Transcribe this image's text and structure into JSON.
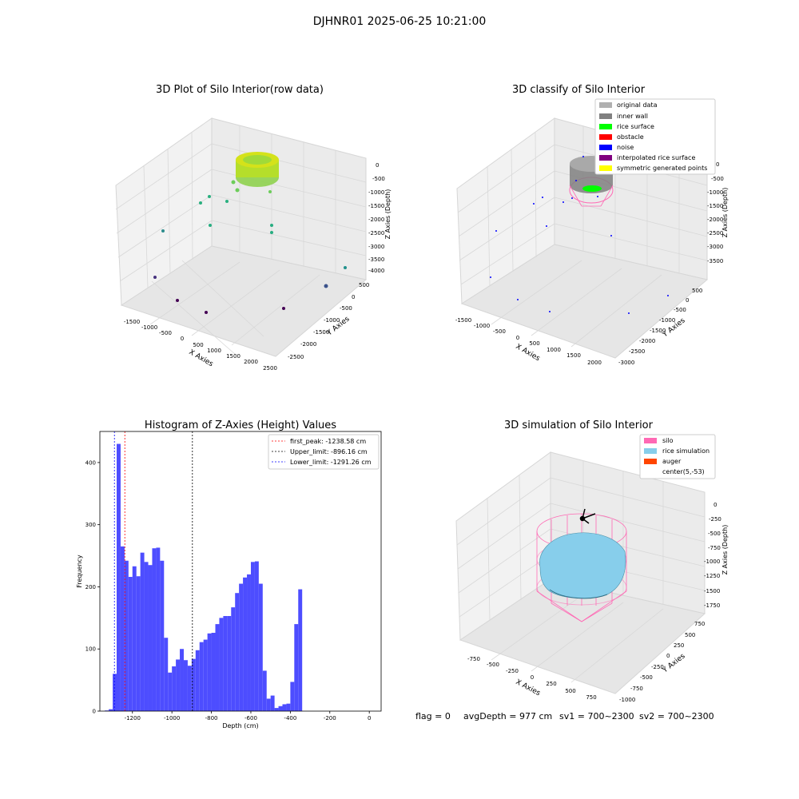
{
  "figure": {
    "suptitle": "DJHNR01 2025-06-25 10:21:00",
    "status": {
      "flag": "flag = 0",
      "avg_depth": "avgDepth = 977 cm",
      "sv1": "sv1 = 700~2300",
      "sv2": "sv2 = 700~2300"
    }
  },
  "panel1": {
    "title": "3D Plot of Silo Interior(row data)",
    "xlabel": "X Axies",
    "ylabel": "Y Axies",
    "zlabel": "Z Axies (Depth)",
    "x_ticks": [
      "-1500",
      "-1000",
      "-500",
      "0",
      "500",
      "1000",
      "1500",
      "2000",
      "2500"
    ],
    "y_ticks": [
      "500",
      "0",
      "-500",
      "-1000",
      "-1500",
      "-2000",
      "-2500"
    ],
    "z_ticks": [
      "0",
      "-500",
      "-1000",
      "-1500",
      "-2000",
      "-2500",
      "-3000",
      "-3500",
      "-4000"
    ]
  },
  "panel2": {
    "title": "3D classify of Silo Interior",
    "xlabel": "X Axies",
    "ylabel": "Y Axies",
    "zlabel": "Z Axies (Depth)",
    "x_ticks": [
      "-1500",
      "-1000",
      "-500",
      "0",
      "500",
      "1000",
      "1500",
      "2000"
    ],
    "y_ticks": [
      "500",
      "0",
      "-500",
      "-1000",
      "-1500",
      "-2000",
      "-2500",
      "-3000"
    ],
    "z_ticks": [
      "0",
      "-500",
      "-1000",
      "-1500",
      "-2000",
      "-2500",
      "-3000",
      "-3500"
    ],
    "legend": [
      {
        "label": "original data",
        "color": "#b0b0b0"
      },
      {
        "label": "inner wall",
        "color": "#808080"
      },
      {
        "label": "rice surface",
        "color": "#00ff00"
      },
      {
        "label": "obstacle",
        "color": "#ff0000"
      },
      {
        "label": "noise",
        "color": "#0000ff"
      },
      {
        "label": "interpolated rice surface",
        "color": "#800080"
      },
      {
        "label": "symmetric generated points",
        "color": "#ffff00"
      }
    ]
  },
  "panel4": {
    "title": "3D simulation of Silo Interior",
    "xlabel": "X Axies",
    "ylabel": "Y Axies",
    "zlabel": "Z Axies (Depth)",
    "x_ticks": [
      "-750",
      "-500",
      "-250",
      "0",
      "250",
      "500",
      "750"
    ],
    "y_ticks": [
      "750",
      "500",
      "250",
      "0",
      "-250",
      "-500",
      "-750",
      "-1000"
    ],
    "z_ticks": [
      "0",
      "-250",
      "-500",
      "-750",
      "-1000",
      "-1250",
      "-1500",
      "-1750"
    ],
    "legend": [
      {
        "label": "silo",
        "color": "#ff69b4"
      },
      {
        "label": "rice simulation",
        "color": "#87ceeb"
      },
      {
        "label": "auger",
        "color": "#ff4500"
      },
      {
        "label": "center(5,-53)",
        "color": "none"
      }
    ]
  },
  "chart_data": {
    "type": "bar",
    "title": "Histogram of Z-Axies (Height) Values",
    "xlabel": "Depth (cm)",
    "ylabel": "Frequency",
    "xlim": [
      -1365,
      60
    ],
    "ylim": [
      0,
      450
    ],
    "x_ticks": [
      -1200,
      -1000,
      -800,
      -600,
      -400,
      -200,
      0
    ],
    "y_ticks": [
      0,
      100,
      200,
      300,
      400
    ],
    "bin_start": -1340,
    "bin_width": 20,
    "values": [
      1,
      3,
      60,
      430,
      265,
      242,
      216,
      233,
      217,
      255,
      240,
      235,
      262,
      263,
      242,
      118,
      62,
      72,
      83,
      100,
      82,
      73,
      84,
      98,
      111,
      115,
      125,
      126,
      140,
      150,
      153,
      153,
      167,
      190,
      205,
      215,
      220,
      240,
      241,
      205,
      65,
      20,
      25,
      5,
      8,
      11,
      12,
      47,
      140,
      196
    ],
    "vlines": [
      {
        "label": "first_peak: -1238.58 cm",
        "value": -1238.58,
        "color": "#ff0000"
      },
      {
        "label": "Upper_limit: -896.16 cm",
        "value": -896.16,
        "color": "#000000"
      },
      {
        "label": "Lower_limit: -1291.26 cm",
        "value": -1291.26,
        "color": "#0000ff"
      }
    ],
    "legend_position": "top-right"
  }
}
